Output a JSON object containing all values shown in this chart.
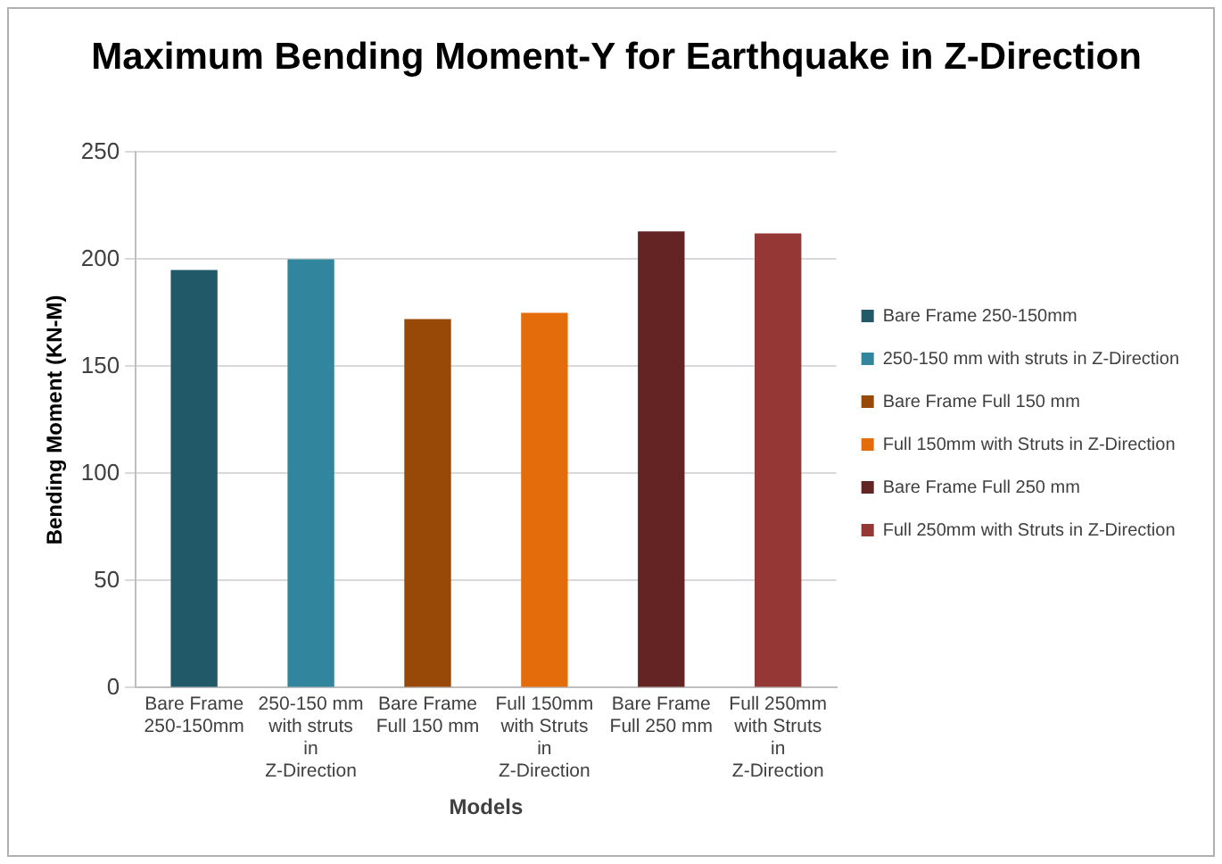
{
  "chart_data": {
    "type": "bar",
    "title": "Maximum Bending Moment-Y for Earthquake in Z-Direction",
    "xlabel": "Models",
    "ylabel": "Bending Moment (KN-M)",
    "categories": [
      "Bare Frame 250-150mm",
      "250-150 mm with struts in Z-Direction",
      "Bare Frame Full 150 mm",
      "Full 150mm with Struts in Z-Direction",
      "Bare Frame Full 250 mm",
      "Full 250mm with Struts in Z-Direction"
    ],
    "series": [
      {
        "name": "Bare Frame 250-150mm",
        "color": "#215968",
        "values": [
          195,
          null,
          null,
          null,
          null,
          null
        ]
      },
      {
        "name": "250-150 mm with struts in Z-Direction",
        "color": "#31859c",
        "values": [
          null,
          200,
          null,
          null,
          null,
          null
        ]
      },
      {
        "name": "Bare Frame Full 150 mm",
        "color": "#984807",
        "values": [
          null,
          null,
          172,
          null,
          null,
          null
        ]
      },
      {
        "name": "Full 150mm with Struts in Z-Direction",
        "color": "#e46c0a",
        "values": [
          null,
          null,
          null,
          175,
          null,
          null
        ]
      },
      {
        "name": "Bare Frame Full 250 mm",
        "color": "#632423",
        "values": [
          null,
          null,
          null,
          null,
          213,
          null
        ]
      },
      {
        "name": "Full 250mm with Struts in Z-Direction",
        "color": "#953735",
        "values": [
          null,
          null,
          null,
          null,
          null,
          212
        ]
      }
    ],
    "ylim": [
      0,
      250
    ],
    "yticks": [
      0,
      50,
      100,
      150,
      200,
      250
    ],
    "grid": "y",
    "legend": "right"
  }
}
